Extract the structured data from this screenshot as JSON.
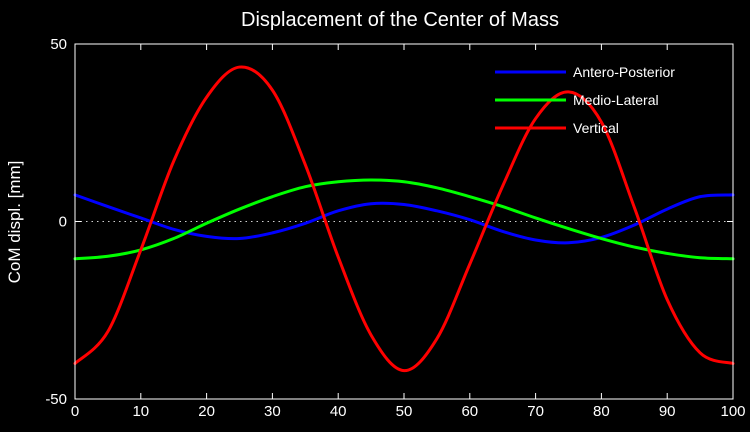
{
  "chart_data": {
    "type": "line",
    "title": "Displacement of the Center of Mass",
    "xlabel": "",
    "ylabel": "CoM displ. [mm]",
    "xlim": [
      0,
      100
    ],
    "ylim": [
      -50,
      50
    ],
    "xticks": [
      0,
      10,
      20,
      30,
      40,
      50,
      60,
      70,
      80,
      90,
      100
    ],
    "yticks": [
      -50,
      0,
      50
    ],
    "xtick_labels": [
      "0",
      "10",
      "20",
      "30",
      "40",
      "50",
      "60",
      "70",
      "80",
      "90",
      "100"
    ],
    "ytick_labels": [
      "-50",
      "0",
      "50"
    ],
    "grid": false,
    "zero_reference_line": "dotted",
    "legend_position": "top-right",
    "background_color": "#000000",
    "axes_color": "#ffffff",
    "x": [
      0,
      5,
      10,
      15,
      20,
      25,
      30,
      35,
      40,
      45,
      50,
      55,
      60,
      65,
      70,
      75,
      80,
      85,
      90,
      95,
      100
    ],
    "series": [
      {
        "name": "Antero-Posterior",
        "color": "#0000ff",
        "values": [
          7.5,
          4.2,
          1.0,
          -2.2,
          -4.2,
          -4.8,
          -3.2,
          -0.5,
          3.0,
          5.0,
          4.8,
          3.0,
          0.5,
          -2.8,
          -5.2,
          -6.0,
          -4.5,
          -1.0,
          3.5,
          7.0,
          7.5
        ]
      },
      {
        "name": "Medio-Lateral",
        "color": "#00ff00",
        "values": [
          -10.5,
          -9.8,
          -8.0,
          -4.8,
          -0.5,
          3.5,
          7.0,
          9.8,
          11.2,
          11.7,
          11.2,
          9.5,
          7.0,
          4.2,
          1.0,
          -2.0,
          -4.8,
          -7.2,
          -9.0,
          -10.2,
          -10.5
        ]
      },
      {
        "name": "Vertical",
        "color": "#ff0000",
        "values": [
          -40.0,
          -31.0,
          -8.0,
          17.0,
          35.0,
          43.5,
          37.0,
          16.0,
          -10.0,
          -32.0,
          -42.0,
          -33.0,
          -12.0,
          10.0,
          29.0,
          36.5,
          28.0,
          4.0,
          -22.0,
          -37.0,
          -40.0
        ]
      }
    ]
  }
}
